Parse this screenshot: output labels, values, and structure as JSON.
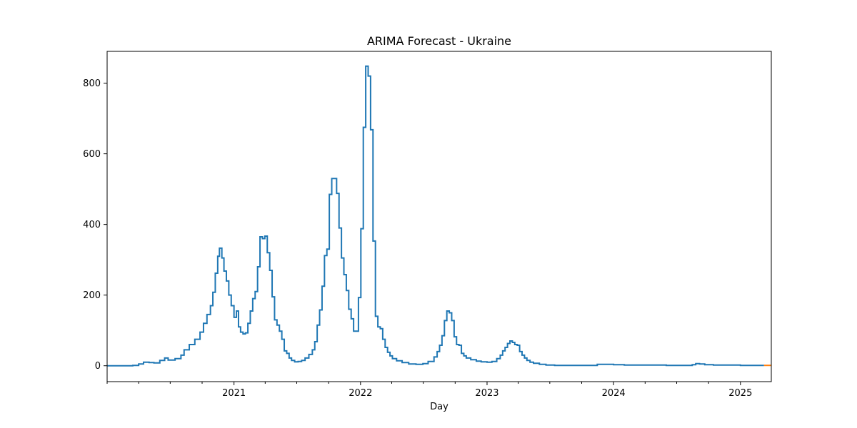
{
  "chart_data": {
    "type": "line",
    "title": "ARIMA Forecast - Ukraine",
    "xlabel": "Day",
    "ylabel": "",
    "x_type": "date",
    "xlim": [
      "2020-01-01",
      "2025-03-31"
    ],
    "ylim": [
      -45,
      890
    ],
    "grid": false,
    "legend": "none",
    "x_ticks": [
      {
        "value": "2021-01-01",
        "label": "2021"
      },
      {
        "value": "2022-01-01",
        "label": "2022"
      },
      {
        "value": "2023-01-01",
        "label": "2023"
      },
      {
        "value": "2024-01-01",
        "label": "2024"
      },
      {
        "value": "2025-01-01",
        "label": "2025"
      }
    ],
    "y_ticks": [
      0,
      200,
      400,
      600,
      800
    ],
    "series": [
      {
        "color": "#1f77b4",
        "points": [
          [
            "2020-01-01",
            0
          ],
          [
            "2020-03-01",
            0
          ],
          [
            "2020-03-15",
            1
          ],
          [
            "2020-04-01",
            5
          ],
          [
            "2020-04-15",
            10
          ],
          [
            "2020-05-01",
            9
          ],
          [
            "2020-05-15",
            8
          ],
          [
            "2020-06-01",
            15
          ],
          [
            "2020-06-15",
            22
          ],
          [
            "2020-06-25",
            16
          ],
          [
            "2020-07-15",
            20
          ],
          [
            "2020-08-01",
            30
          ],
          [
            "2020-08-10",
            45
          ],
          [
            "2020-08-25",
            60
          ],
          [
            "2020-09-10",
            75
          ],
          [
            "2020-09-25",
            95
          ],
          [
            "2020-10-05",
            120
          ],
          [
            "2020-10-15",
            145
          ],
          [
            "2020-10-25",
            170
          ],
          [
            "2020-11-01",
            208
          ],
          [
            "2020-11-08",
            262
          ],
          [
            "2020-11-15",
            310
          ],
          [
            "2020-11-20",
            333
          ],
          [
            "2020-11-27",
            305
          ],
          [
            "2020-12-03",
            268
          ],
          [
            "2020-12-10",
            240
          ],
          [
            "2020-12-17",
            200
          ],
          [
            "2020-12-24",
            170
          ],
          [
            "2021-01-01",
            137
          ],
          [
            "2021-01-08",
            155
          ],
          [
            "2021-01-14",
            110
          ],
          [
            "2021-01-20",
            95
          ],
          [
            "2021-01-27",
            90
          ],
          [
            "2021-02-03",
            93
          ],
          [
            "2021-02-10",
            120
          ],
          [
            "2021-02-17",
            155
          ],
          [
            "2021-02-24",
            190
          ],
          [
            "2021-03-03",
            210
          ],
          [
            "2021-03-10",
            280
          ],
          [
            "2021-03-17",
            365
          ],
          [
            "2021-03-24",
            360
          ],
          [
            "2021-03-31",
            367
          ],
          [
            "2021-04-07",
            320
          ],
          [
            "2021-04-14",
            270
          ],
          [
            "2021-04-21",
            195
          ],
          [
            "2021-04-28",
            130
          ],
          [
            "2021-05-05",
            115
          ],
          [
            "2021-05-12",
            98
          ],
          [
            "2021-05-19",
            75
          ],
          [
            "2021-05-26",
            42
          ],
          [
            "2021-06-02",
            35
          ],
          [
            "2021-06-09",
            22
          ],
          [
            "2021-06-16",
            15
          ],
          [
            "2021-06-25",
            11
          ],
          [
            "2021-07-05",
            12
          ],
          [
            "2021-07-15",
            15
          ],
          [
            "2021-07-25",
            22
          ],
          [
            "2021-08-05",
            32
          ],
          [
            "2021-08-15",
            45
          ],
          [
            "2021-08-22",
            68
          ],
          [
            "2021-08-29",
            115
          ],
          [
            "2021-09-05",
            158
          ],
          [
            "2021-09-12",
            225
          ],
          [
            "2021-09-19",
            312
          ],
          [
            "2021-09-26",
            330
          ],
          [
            "2021-10-03",
            485
          ],
          [
            "2021-10-10",
            530
          ],
          [
            "2021-10-24",
            488
          ],
          [
            "2021-10-31",
            390
          ],
          [
            "2021-11-07",
            305
          ],
          [
            "2021-11-14",
            258
          ],
          [
            "2021-11-21",
            213
          ],
          [
            "2021-11-28",
            160
          ],
          [
            "2021-12-05",
            133
          ],
          [
            "2021-12-12",
            98
          ],
          [
            "2021-12-26",
            193
          ],
          [
            "2022-01-02",
            388
          ],
          [
            "2022-01-09",
            675
          ],
          [
            "2022-01-16",
            848
          ],
          [
            "2022-01-23",
            820
          ],
          [
            "2022-01-30",
            668
          ],
          [
            "2022-02-06",
            353
          ],
          [
            "2022-02-13",
            140
          ],
          [
            "2022-02-20",
            110
          ],
          [
            "2022-02-27",
            105
          ],
          [
            "2022-03-06",
            75
          ],
          [
            "2022-03-13",
            52
          ],
          [
            "2022-03-20",
            38
          ],
          [
            "2022-03-27",
            28
          ],
          [
            "2022-04-03",
            20
          ],
          [
            "2022-04-15",
            14
          ],
          [
            "2022-05-01",
            9
          ],
          [
            "2022-05-20",
            5
          ],
          [
            "2022-06-10",
            4
          ],
          [
            "2022-06-30",
            6
          ],
          [
            "2022-07-15",
            12
          ],
          [
            "2022-08-01",
            25
          ],
          [
            "2022-08-10",
            40
          ],
          [
            "2022-08-17",
            58
          ],
          [
            "2022-08-24",
            85
          ],
          [
            "2022-08-31",
            128
          ],
          [
            "2022-09-07",
            155
          ],
          [
            "2022-09-14",
            150
          ],
          [
            "2022-09-21",
            128
          ],
          [
            "2022-09-28",
            82
          ],
          [
            "2022-10-05",
            60
          ],
          [
            "2022-10-12",
            58
          ],
          [
            "2022-10-19",
            35
          ],
          [
            "2022-10-26",
            28
          ],
          [
            "2022-11-02",
            22
          ],
          [
            "2022-11-15",
            17
          ],
          [
            "2022-12-01",
            13
          ],
          [
            "2022-12-15",
            11
          ],
          [
            "2023-01-01",
            10
          ],
          [
            "2023-01-15",
            12
          ],
          [
            "2023-01-29",
            20
          ],
          [
            "2023-02-08",
            30
          ],
          [
            "2023-02-15",
            42
          ],
          [
            "2023-02-22",
            52
          ],
          [
            "2023-03-01",
            63
          ],
          [
            "2023-03-08",
            70
          ],
          [
            "2023-03-15",
            66
          ],
          [
            "2023-03-22",
            60
          ],
          [
            "2023-03-29",
            58
          ],
          [
            "2023-04-05",
            40
          ],
          [
            "2023-04-12",
            30
          ],
          [
            "2023-04-19",
            22
          ],
          [
            "2023-04-26",
            15
          ],
          [
            "2023-05-05",
            10
          ],
          [
            "2023-05-15",
            7
          ],
          [
            "2023-06-01",
            4
          ],
          [
            "2023-06-20",
            2
          ],
          [
            "2023-07-15",
            1
          ],
          [
            "2023-11-01",
            1
          ],
          [
            "2023-11-15",
            4
          ],
          [
            "2023-12-01",
            4
          ],
          [
            "2024-01-01",
            3
          ],
          [
            "2024-02-01",
            2
          ],
          [
            "2024-06-01",
            1
          ],
          [
            "2024-08-01",
            1
          ],
          [
            "2024-08-15",
            3
          ],
          [
            "2024-08-25",
            6
          ],
          [
            "2024-09-05",
            5
          ],
          [
            "2024-09-20",
            3
          ],
          [
            "2024-10-15",
            2
          ],
          [
            "2025-01-01",
            1
          ],
          [
            "2025-03-10",
            1
          ]
        ]
      },
      {
        "color": "#ff7f0e",
        "points": [
          [
            "2025-03-10",
            1
          ],
          [
            "2025-03-31",
            1
          ]
        ]
      }
    ]
  }
}
